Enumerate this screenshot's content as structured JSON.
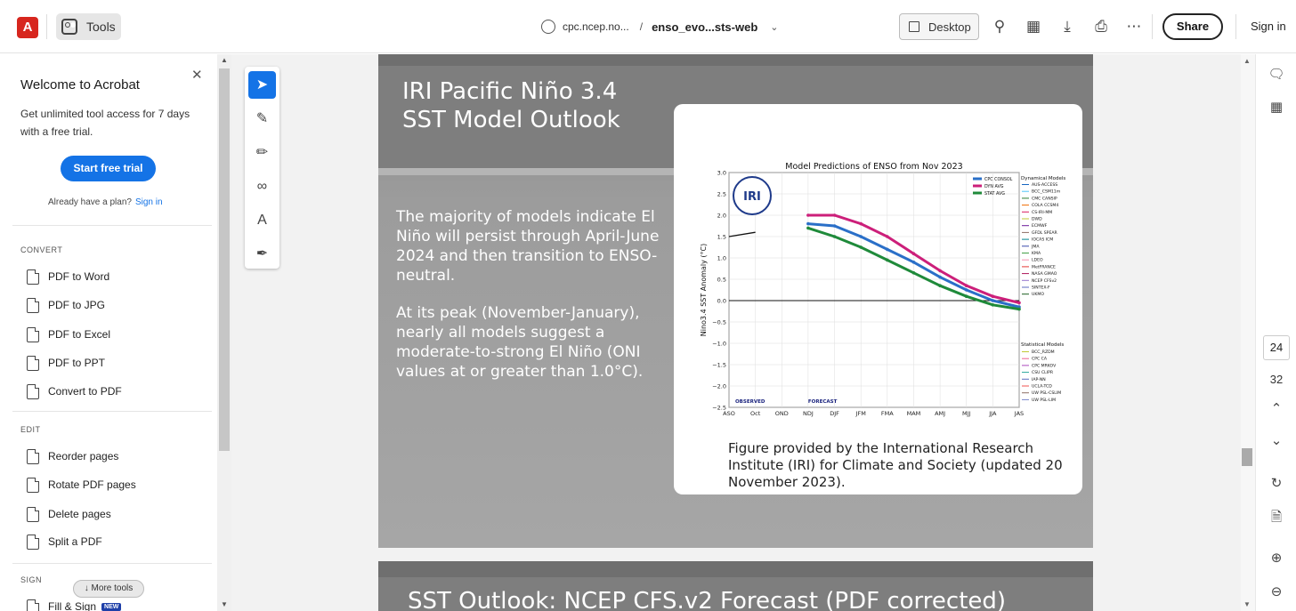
{
  "topbar": {
    "tools_label": "Tools",
    "url_domain": "cpc.ncep.no...",
    "url_sep": "/",
    "file_name": "enso_evo...sts-web",
    "desktop_label": "Desktop",
    "share_label": "Share",
    "signin_label": "Sign in"
  },
  "sidebar": {
    "title": "Welcome to Acrobat",
    "description": "Get unlimited tool access for 7 days with a free trial.",
    "trial_button": "Start free trial",
    "already_text": "Already have a plan?",
    "already_link": "Sign in",
    "convert_header": "CONVERT",
    "convert_items": [
      "PDF to Word",
      "PDF to JPG",
      "PDF to Excel",
      "PDF to PPT",
      "Convert to PDF"
    ],
    "edit_header": "EDIT",
    "edit_items": [
      "Reorder pages",
      "Rotate PDF pages",
      "Delete pages",
      "Split a PDF"
    ],
    "sign_header": "SIGN",
    "sign_item": "Fill & Sign",
    "new_badge": "NEW",
    "more_tools": "More tools"
  },
  "slide": {
    "title_line1": "IRI Pacific Niño 3.4",
    "title_line2": "SST Model Outlook",
    "para1": "The majority of models indicate El Niño will persist through April-June 2024 and then transition to ENSO-neutral.",
    "para2": "At its peak (November-January), nearly all models suggest a moderate-to-strong El Niño (ONI values at or greater than 1.0°C).",
    "caption": "Figure provided by the International Research Institute (IRI) for Climate and Society (updated 20 November 2023).",
    "next_title": "SST Outlook: NCEP CFS.v2 Forecast (PDF corrected)"
  },
  "chart_data": {
    "type": "line",
    "title": "Model Predictions of ENSO from Nov 2023",
    "ylabel": "Nino3.4 SST Anomaly (°C)",
    "xlabel": "",
    "categories": [
      "ASO",
      "Oct",
      "OND",
      "NDJ",
      "DJF",
      "JFM",
      "FMA",
      "MAM",
      "AMJ",
      "MJJ",
      "JJA",
      "JAS"
    ],
    "ylim": [
      -2.5,
      3.0
    ],
    "yticks": [
      "3.0",
      "2.5",
      "2.0",
      "1.5",
      "1.0",
      "0.5",
      "0.0",
      "−0.5",
      "−1.0",
      "−1.5",
      "−2.0",
      "−2.5"
    ],
    "logo_text": "IRI",
    "observed_label": "OBSERVED",
    "forecast_label": "FORECAST",
    "observed": {
      "x": [
        "ASO",
        "Oct"
      ],
      "values": [
        1.5,
        1.6
      ]
    },
    "series": [
      {
        "name": "CPC CONSOL",
        "color": "#2a6fc8",
        "values": [
          null,
          null,
          null,
          1.8,
          1.75,
          1.5,
          1.2,
          0.9,
          0.55,
          0.25,
          0.0,
          -0.15
        ]
      },
      {
        "name": "DYN AVG",
        "color": "#cc1f7a",
        "values": [
          null,
          null,
          null,
          2.0,
          2.0,
          1.8,
          1.5,
          1.1,
          0.7,
          0.35,
          0.1,
          -0.05
        ]
      },
      {
        "name": "STAT AVG",
        "color": "#1f8a3a",
        "values": [
          null,
          null,
          null,
          1.7,
          1.5,
          1.25,
          0.95,
          0.65,
          0.35,
          0.1,
          -0.1,
          -0.2
        ]
      }
    ],
    "dynamical_header": "Dynamical Models",
    "dynamical_models": [
      "AUS-ACCESS",
      "BCC_CSM11m",
      "CMC CANSIP",
      "COLA CCSM4",
      "CS-IRI-MM",
      "DWD",
      "ECMWF",
      "GFDL SPEAR",
      "IOCAS ICM",
      "JMA",
      "KMA",
      "LDEO",
      "MetFRANCE",
      "NASA GMAO",
      "NCEP CFSv2",
      "SINTEX-F",
      "UKMO"
    ],
    "statistical_header": "Statistical Models",
    "statistical_models": [
      "BCC_RZDM",
      "CPC CA",
      "CPC MRKOV",
      "CSU CLIPR",
      "IAP-NN",
      "UCLA-TCD",
      "UW PSL-CSLIM",
      "UW PSL-LIM"
    ],
    "legend_placement": "top-right",
    "grid": true
  },
  "rail": {
    "current_page": "24",
    "total_pages": "32"
  }
}
